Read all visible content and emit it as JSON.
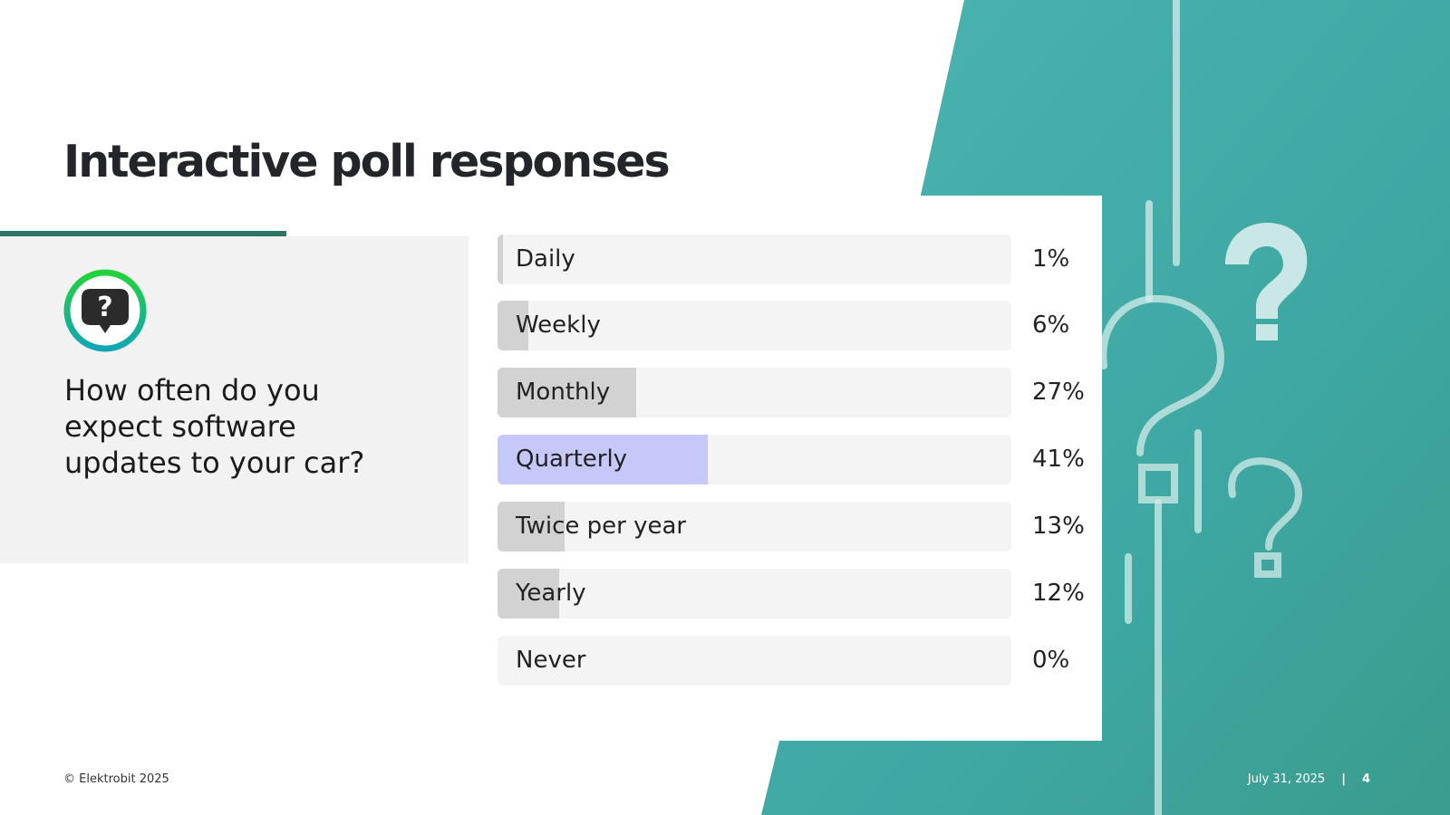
{
  "slide": {
    "title": "Interactive poll responses",
    "question": "How often do you expect software updates to your car?",
    "icon": "question-bubble-icon"
  },
  "poll": {
    "selected_color": "#c5c8f8",
    "fill_color": "#d2d2d2",
    "options": [
      {
        "label": "Daily",
        "percent_text": "1%",
        "percent": 1,
        "selected": false
      },
      {
        "label": "Weekly",
        "percent_text": "6%",
        "percent": 6,
        "selected": false
      },
      {
        "label": "Monthly",
        "percent_text": "27%",
        "percent": 27,
        "selected": false
      },
      {
        "label": "Quarterly",
        "percent_text": "41%",
        "percent": 41,
        "selected": true
      },
      {
        "label": "Twice per year",
        "percent_text": "13%",
        "percent": 13,
        "selected": false
      },
      {
        "label": "Yearly",
        "percent_text": "12%",
        "percent": 12,
        "selected": false
      },
      {
        "label": "Never",
        "percent_text": "0%",
        "percent": 0,
        "selected": false
      }
    ]
  },
  "footer": {
    "copyright": "© Elektrobit 2025",
    "date": "July 31, 2025",
    "separator": "|",
    "page_number": "4"
  },
  "colors": {
    "teal": "#45aaa8",
    "accent_line": "#2b7466",
    "title": "#23252b",
    "icon_ring_start": "#22d33a",
    "icon_ring_end": "#12a5b8"
  }
}
